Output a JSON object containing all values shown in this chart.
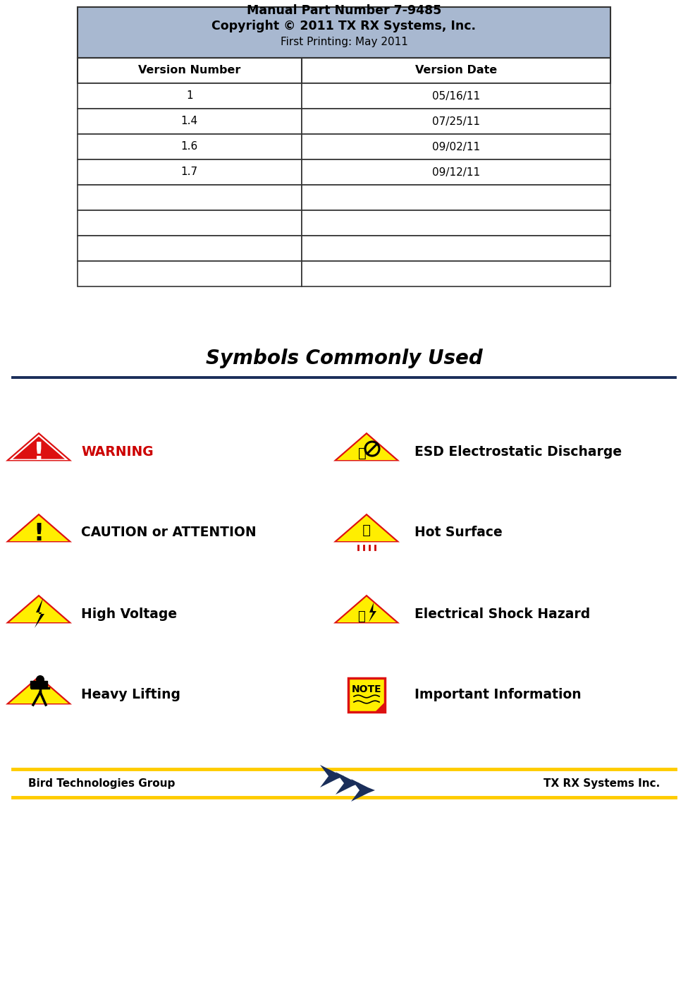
{
  "title_header_line1": "Manual Part Number 7-9485",
  "title_header_line2": "Copyright © 2011 TX RX Systems, Inc.",
  "title_header_line3": "First Printing: May 2011",
  "header_bg_color": "#a8b8d0",
  "table_col_headers": [
    "Version Number",
    "Version Date"
  ],
  "table_rows": [
    [
      "1",
      "05/16/11"
    ],
    [
      "1.4",
      "07/25/11"
    ],
    [
      "1.6",
      "09/02/11"
    ],
    [
      "1.7",
      "09/12/11"
    ],
    [
      "",
      ""
    ],
    [
      "",
      ""
    ],
    [
      "",
      ""
    ],
    [
      "",
      ""
    ]
  ],
  "section_title": "Symbols Commonly Used",
  "divider_color": "#1a2e5a",
  "symbols": [
    {
      "label": "WARNING",
      "label_color": "#cc0000",
      "label_bold": true,
      "col": 0,
      "row": 0,
      "icon_type": "warning_red"
    },
    {
      "label": "ESD Electrostatic Discharge",
      "label_color": "#000000",
      "label_bold": true,
      "col": 1,
      "row": 0,
      "icon_type": "esd"
    },
    {
      "label": "CAUTION or ATTENTION",
      "label_color": "#000000",
      "label_bold": true,
      "col": 0,
      "row": 1,
      "icon_type": "caution"
    },
    {
      "label": "Hot Surface",
      "label_color": "#000000",
      "label_bold": true,
      "col": 1,
      "row": 1,
      "icon_type": "hot_surface"
    },
    {
      "label": "High Voltage",
      "label_color": "#000000",
      "label_bold": true,
      "col": 0,
      "row": 2,
      "icon_type": "high_voltage"
    },
    {
      "label": "Electrical Shock Hazard",
      "label_color": "#000000",
      "label_bold": true,
      "col": 1,
      "row": 2,
      "icon_type": "electrical_shock"
    },
    {
      "label": "Heavy Lifting",
      "label_color": "#000000",
      "label_bold": true,
      "col": 0,
      "row": 3,
      "icon_type": "heavy_lifting"
    },
    {
      "label": "Important Information",
      "label_color": "#000000",
      "label_bold": true,
      "col": 1,
      "row": 3,
      "icon_type": "note"
    }
  ],
  "footer_left": "Bird Technologies Group",
  "footer_right": "TX RX Systems Inc.",
  "footer_divider_color": "#ffcc00",
  "bg_color": "#ffffff"
}
